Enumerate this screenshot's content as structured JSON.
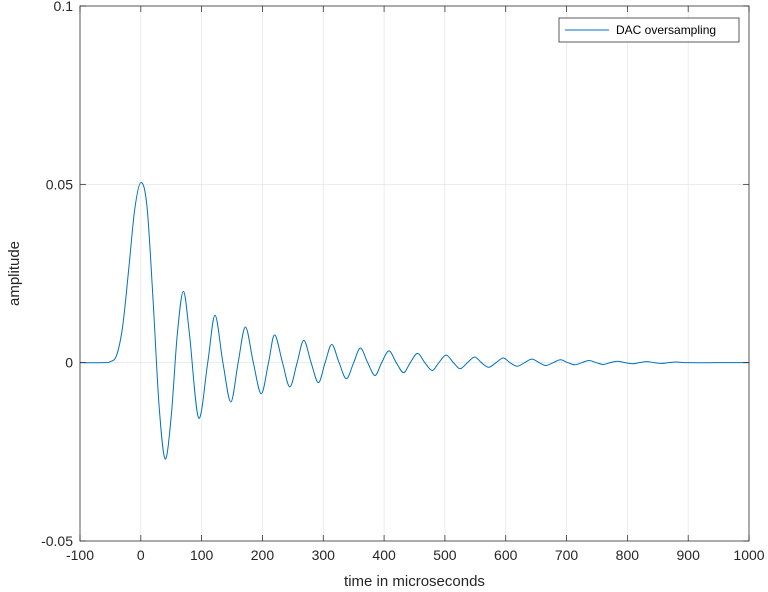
{
  "chart_data": {
    "type": "line",
    "title": "",
    "xlabel": "time in microseconds",
    "ylabel": "amplitude",
    "xlim": [
      -100,
      1000
    ],
    "ylim": [
      -0.05,
      0.1
    ],
    "x_ticks": [
      -100,
      0,
      100,
      200,
      300,
      400,
      500,
      600,
      700,
      800,
      900,
      1000
    ],
    "x_tick_labels": [
      "-100",
      "0",
      "100",
      "200",
      "300",
      "400",
      "500",
      "600",
      "700",
      "800",
      "900",
      "1000"
    ],
    "y_ticks": [
      -0.05,
      0,
      0.05,
      0.1
    ],
    "y_tick_labels": [
      "-0.05",
      "0",
      "0.05",
      "0.1"
    ],
    "grid": true,
    "legend_position": "top-right",
    "series": [
      {
        "name": "DAC oversampling",
        "color": "#0072bd",
        "x": [
          -100,
          -60,
          -50,
          -40,
          -30,
          -20,
          -10,
          0,
          10,
          20,
          30,
          40,
          50,
          60,
          70,
          80,
          95,
          110,
          122,
          135,
          148,
          160,
          172,
          185,
          198,
          210,
          220,
          233,
          245,
          257,
          268,
          280,
          292,
          303,
          314,
          326,
          338,
          350,
          361,
          373,
          385,
          396,
          408,
          420,
          432,
          443,
          455,
          467,
          479,
          490,
          502,
          514,
          525,
          537,
          549,
          560,
          572,
          584,
          596,
          607,
          619,
          631,
          643,
          655,
          666,
          678,
          690,
          702,
          714,
          725,
          737,
          749,
          760,
          772,
          784,
          796,
          808,
          820,
          832,
          844,
          856,
          868,
          880,
          900,
          950,
          1000
        ],
        "y": [
          0,
          0,
          0.0003,
          0.002,
          0.01,
          0.026,
          0.043,
          0.0505,
          0.044,
          0.018,
          -0.012,
          -0.027,
          -0.015,
          0.008,
          0.02,
          0.008,
          -0.0155,
          0.0,
          0.0133,
          0.0,
          -0.011,
          0.0,
          0.01,
          0.0,
          -0.0087,
          0.0,
          0.0078,
          0.0,
          -0.0068,
          0.0,
          0.0063,
          0.0,
          -0.0056,
          0.0,
          0.0051,
          0.0,
          -0.0045,
          0.0,
          0.0041,
          0.0,
          -0.0036,
          0.0,
          0.0033,
          0.0,
          -0.0028,
          0.0,
          0.0026,
          0.0,
          -0.0022,
          0.0,
          0.0021,
          0.0,
          -0.0017,
          0.0,
          0.0016,
          0.0,
          -0.0013,
          0.0,
          0.0013,
          0.0,
          -0.001,
          0.0,
          0.001,
          0.0,
          -0.0008,
          0.0,
          0.0008,
          0.0,
          -0.0006,
          0.0,
          0.0006,
          0.0,
          -0.0005,
          0.0,
          0.0004,
          0.0,
          -0.0003,
          0.0,
          0.0003,
          0.0,
          -0.0002,
          0.0,
          0.0002,
          0.0,
          0.0,
          0.0
        ]
      }
    ]
  }
}
